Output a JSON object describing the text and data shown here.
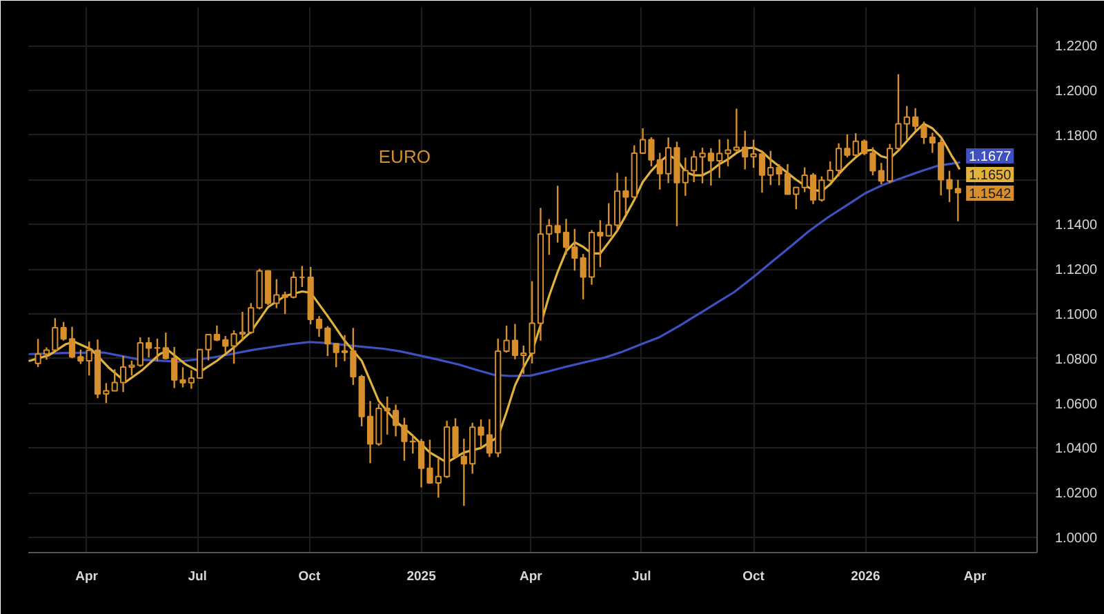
{
  "chart_data": {
    "type": "candlestick",
    "title": "EURO",
    "color": "#d68f2c",
    "xlim": [
      "2024-02-13",
      "2026-05-22"
    ],
    "xticks": [
      {
        "value": "2024-04-01",
        "label": "Apr"
      },
      {
        "value": "2024-07-01",
        "label": "Jul"
      },
      {
        "value": "2024-10-01",
        "label": "Oct"
      },
      {
        "value": "2025-01-01",
        "label": "2025"
      },
      {
        "value": "2025-04-01",
        "label": "Apr"
      },
      {
        "value": "2025-07-01",
        "label": "Jul"
      },
      {
        "value": "2025-10-01",
        "label": "Oct"
      },
      {
        "value": "2026-01-01",
        "label": "2026"
      },
      {
        "value": "2026-04-01",
        "label": "Apr"
      }
    ],
    "ylim": [
      0.9932,
      1.237
    ],
    "yticks": [
      {
        "value": 1.0,
        "label": "1.0000"
      },
      {
        "value": 1.02,
        "label": "1.0200"
      },
      {
        "value": 1.04,
        "label": "1.0400"
      },
      {
        "value": 1.06,
        "label": "1.0600"
      },
      {
        "value": 1.08,
        "label": "1.0800"
      },
      {
        "value": 1.1,
        "label": "1.1000"
      },
      {
        "value": 1.12,
        "label": "1.1200"
      },
      {
        "value": 1.14,
        "label": "1.1400"
      },
      {
        "value": 1.16,
        "label": null
      },
      {
        "value": 1.18,
        "label": "1.1800"
      },
      {
        "value": 1.2,
        "label": "1.2000"
      },
      {
        "value": 1.22,
        "label": "1.2200"
      }
    ],
    "grid": true,
    "x": [
      "2024-02-21",
      "2024-02-28",
      "2024-03-06",
      "2024-03-13",
      "2024-03-20",
      "2024-03-27",
      "2024-04-03",
      "2024-04-10",
      "2024-04-17",
      "2024-04-24",
      "2024-05-01",
      "2024-05-08",
      "2024-05-15",
      "2024-05-22",
      "2024-05-29",
      "2024-06-05",
      "2024-06-12",
      "2024-06-19",
      "2024-06-26",
      "2024-07-03",
      "2024-07-10",
      "2024-07-17",
      "2024-07-24",
      "2024-07-31",
      "2024-08-07",
      "2024-08-14",
      "2024-08-21",
      "2024-08-28",
      "2024-09-04",
      "2024-09-11",
      "2024-09-18",
      "2024-09-25",
      "2024-10-02",
      "2024-10-09",
      "2024-10-16",
      "2024-10-23",
      "2024-10-30",
      "2024-11-06",
      "2024-11-13",
      "2024-11-20",
      "2024-11-27",
      "2024-12-04",
      "2024-12-11",
      "2024-12-18",
      "2024-12-25",
      "2025-01-01",
      "2025-01-08",
      "2025-01-15",
      "2025-01-22",
      "2025-01-29",
      "2025-02-05",
      "2025-02-12",
      "2025-02-19",
      "2025-02-26",
      "2025-03-05",
      "2025-03-12",
      "2025-03-19",
      "2025-03-26",
      "2025-04-02",
      "2025-04-09",
      "2025-04-16",
      "2025-04-23",
      "2025-04-30",
      "2025-05-07",
      "2025-05-14",
      "2025-05-21",
      "2025-05-28",
      "2025-06-04",
      "2025-06-11",
      "2025-06-18",
      "2025-06-25",
      "2025-07-02",
      "2025-07-09",
      "2025-07-16",
      "2025-07-23",
      "2025-07-30",
      "2025-08-06",
      "2025-08-13",
      "2025-08-20",
      "2025-08-27",
      "2025-09-03",
      "2025-09-10",
      "2025-09-17",
      "2025-09-24",
      "2025-10-01",
      "2025-10-08",
      "2025-10-15",
      "2025-10-22",
      "2025-10-29",
      "2025-11-05",
      "2025-11-12",
      "2025-11-19",
      "2025-11-26",
      "2025-12-03",
      "2025-12-10",
      "2025-12-17",
      "2025-12-24",
      "2025-12-31",
      "2026-01-07",
      "2026-01-14",
      "2026-01-21",
      "2026-01-28",
      "2026-02-04",
      "2026-02-11",
      "2026-02-18",
      "2026-02-25",
      "2026-03-04",
      "2026-03-11",
      "2026-03-18"
    ],
    "ohlc": [
      [
        1.0778,
        1.0888,
        1.0762,
        1.082
      ],
      [
        1.082,
        1.085,
        1.0795,
        1.0838
      ],
      [
        1.0838,
        1.0981,
        1.0835,
        1.0938
      ],
      [
        1.0938,
        1.0964,
        1.088,
        1.0888
      ],
      [
        1.0888,
        1.0942,
        1.0802,
        1.0808
      ],
      [
        1.0808,
        1.084,
        1.0776,
        1.079
      ],
      [
        1.079,
        1.0876,
        1.0724,
        1.0837
      ],
      [
        1.0837,
        1.0885,
        1.0623,
        1.0642
      ],
      [
        1.0642,
        1.069,
        1.0601,
        1.0656
      ],
      [
        1.0656,
        1.0752,
        1.0655,
        1.0693
      ],
      [
        1.0693,
        1.0812,
        1.065,
        1.0762
      ],
      [
        1.0762,
        1.0791,
        1.0724,
        1.077
      ],
      [
        1.077,
        1.0895,
        1.0763,
        1.087
      ],
      [
        1.087,
        1.0895,
        1.0805,
        1.0847
      ],
      [
        1.0847,
        1.0889,
        1.0788,
        1.0848
      ],
      [
        1.0848,
        1.0916,
        1.0797,
        1.0801
      ],
      [
        1.0801,
        1.0852,
        1.0668,
        1.0704
      ],
      [
        1.0704,
        1.0761,
        1.0671,
        1.0692
      ],
      [
        1.0692,
        1.0748,
        1.0665,
        1.0713
      ],
      [
        1.0713,
        1.0843,
        1.071,
        1.084
      ],
      [
        1.084,
        1.091,
        1.0792,
        1.0907
      ],
      [
        1.0907,
        1.0948,
        1.0878,
        1.0883
      ],
      [
        1.0883,
        1.0901,
        1.0825,
        1.0856
      ],
      [
        1.0856,
        1.0926,
        1.0777,
        1.091
      ],
      [
        1.091,
        1.1009,
        1.088,
        1.0917
      ],
      [
        1.0917,
        1.1048,
        1.091,
        1.1027
      ],
      [
        1.1027,
        1.1202,
        1.102,
        1.1192
      ],
      [
        1.1192,
        1.1195,
        1.104,
        1.1048
      ],
      [
        1.1048,
        1.1155,
        1.1026,
        1.1085
      ],
      [
        1.1085,
        1.1099,
        1.0999,
        1.1075
      ],
      [
        1.1075,
        1.1189,
        1.1069,
        1.1163
      ],
      [
        1.1163,
        1.1214,
        1.112,
        1.1163
      ],
      [
        1.1163,
        1.121,
        1.0953,
        1.0975
      ],
      [
        1.0975,
        1.099,
        1.0897,
        1.0936
      ],
      [
        1.0936,
        1.0945,
        1.0811,
        1.0866
      ],
      [
        1.0866,
        1.087,
        1.0761,
        1.0828
      ],
      [
        1.0828,
        1.0905,
        1.0788,
        1.0834
      ],
      [
        1.0834,
        1.0937,
        1.0682,
        1.0719
      ],
      [
        1.0719,
        1.0727,
        1.0497,
        1.0541
      ],
      [
        1.0541,
        1.061,
        1.0332,
        1.0418
      ],
      [
        1.0418,
        1.0597,
        1.041,
        1.0577
      ],
      [
        1.0577,
        1.063,
        1.046,
        1.0567
      ],
      [
        1.0567,
        1.0594,
        1.0452,
        1.0501
      ],
      [
        1.0501,
        1.0535,
        1.0343,
        1.043
      ],
      [
        1.043,
        1.0456,
        1.0375,
        1.0428
      ],
      [
        1.0428,
        1.044,
        1.0224,
        1.0309
      ],
      [
        1.0309,
        1.0437,
        1.0242,
        1.0244
      ],
      [
        1.0244,
        1.0353,
        1.0178,
        1.0272
      ],
      [
        1.0272,
        1.0522,
        1.0266,
        1.0494
      ],
      [
        1.0494,
        1.0533,
        1.0355,
        1.0362
      ],
      [
        1.0362,
        1.0442,
        1.0141,
        1.0329
      ],
      [
        1.0329,
        1.0513,
        1.0285,
        1.0493
      ],
      [
        1.0493,
        1.0528,
        1.0401,
        1.0458
      ],
      [
        1.0458,
        1.0529,
        1.036,
        1.0378
      ],
      [
        1.0378,
        1.0889,
        1.0359,
        1.0833
      ],
      [
        1.0833,
        1.0947,
        1.0827,
        1.0881
      ],
      [
        1.0881,
        1.0955,
        1.0797,
        1.0815
      ],
      [
        1.0815,
        1.0858,
        1.0732,
        1.0824
      ],
      [
        1.0824,
        1.1146,
        1.0778,
        1.0958
      ],
      [
        1.0958,
        1.1474,
        1.088,
        1.1357
      ],
      [
        1.1357,
        1.1424,
        1.1264,
        1.1394
      ],
      [
        1.1394,
        1.1573,
        1.1319,
        1.1364
      ],
      [
        1.1364,
        1.1425,
        1.1265,
        1.1298
      ],
      [
        1.1298,
        1.138,
        1.1193,
        1.125
      ],
      [
        1.125,
        1.1268,
        1.1065,
        1.1165
      ],
      [
        1.1165,
        1.1375,
        1.113,
        1.1364
      ],
      [
        1.1364,
        1.1419,
        1.1209,
        1.1349
      ],
      [
        1.1349,
        1.1495,
        1.1345,
        1.1397
      ],
      [
        1.1397,
        1.1631,
        1.1373,
        1.1549
      ],
      [
        1.1549,
        1.1614,
        1.1446,
        1.1523
      ],
      [
        1.1523,
        1.1754,
        1.152,
        1.1719
      ],
      [
        1.1719,
        1.183,
        1.1715,
        1.1779
      ],
      [
        1.1779,
        1.179,
        1.166,
        1.1689
      ],
      [
        1.1689,
        1.172,
        1.1556,
        1.1627
      ],
      [
        1.1627,
        1.1789,
        1.1585,
        1.1743
      ],
      [
        1.1743,
        1.177,
        1.1392,
        1.1587
      ],
      [
        1.1587,
        1.1699,
        1.1528,
        1.1641
      ],
      [
        1.1641,
        1.173,
        1.1589,
        1.1702
      ],
      [
        1.1702,
        1.1743,
        1.1584,
        1.1718
      ],
      [
        1.1718,
        1.1741,
        1.1574,
        1.1685
      ],
      [
        1.1685,
        1.178,
        1.1608,
        1.1717
      ],
      [
        1.1717,
        1.1781,
        1.166,
        1.1733
      ],
      [
        1.1733,
        1.1918,
        1.1726,
        1.1745
      ],
      [
        1.1745,
        1.1819,
        1.1646,
        1.1703
      ],
      [
        1.1703,
        1.1779,
        1.1653,
        1.1715
      ],
      [
        1.1715,
        1.173,
        1.1542,
        1.1621
      ],
      [
        1.1621,
        1.1729,
        1.1576,
        1.1654
      ],
      [
        1.1654,
        1.1669,
        1.1575,
        1.1626
      ],
      [
        1.1626,
        1.167,
        1.1535,
        1.1535
      ],
      [
        1.1535,
        1.1568,
        1.1468,
        1.1565
      ],
      [
        1.1565,
        1.1655,
        1.1545,
        1.162
      ],
      [
        1.162,
        1.163,
        1.1491,
        1.151
      ],
      [
        1.151,
        1.1615,
        1.1502,
        1.1598
      ],
      [
        1.1598,
        1.1682,
        1.159,
        1.1642
      ],
      [
        1.1642,
        1.1763,
        1.1615,
        1.174
      ],
      [
        1.174,
        1.1803,
        1.17,
        1.171
      ],
      [
        1.171,
        1.1808,
        1.1705,
        1.1772
      ],
      [
        1.1772,
        1.178,
        1.171,
        1.1718
      ],
      [
        1.1718,
        1.1745,
        1.162,
        1.164
      ],
      [
        1.164,
        1.1675,
        1.158,
        1.1595
      ],
      [
        1.1595,
        1.176,
        1.1585,
        1.174
      ],
      [
        1.174,
        1.2072,
        1.173,
        1.185
      ],
      [
        1.185,
        1.193,
        1.178,
        1.188
      ],
      [
        1.188,
        1.192,
        1.182,
        1.184
      ],
      [
        1.184,
        1.186,
        1.176,
        1.179
      ],
      [
        1.179,
        1.181,
        1.172,
        1.1765
      ],
      [
        1.1765,
        1.178,
        1.153,
        1.16
      ],
      [
        1.16,
        1.164,
        1.15,
        1.156
      ],
      [
        1.156,
        1.16,
        1.1414,
        1.1542
      ]
    ],
    "series": [
      {
        "type": "line",
        "color": "#3f50c0",
        "x": [
          "2024-02-14",
          "2024-03-15",
          "2024-04-15",
          "2024-05-15",
          "2024-06-15",
          "2024-07-15",
          "2024-08-15",
          "2024-09-15",
          "2024-10-01",
          "2024-10-15",
          "2024-11-01",
          "2024-11-15",
          "2024-12-01",
          "2024-12-15",
          "2025-01-01",
          "2025-01-15",
          "2025-02-01",
          "2025-02-15",
          "2025-03-01",
          "2025-03-15",
          "2025-04-01",
          "2025-04-15",
          "2025-05-01",
          "2025-05-15",
          "2025-06-01",
          "2025-06-15",
          "2025-07-01",
          "2025-07-15",
          "2025-08-01",
          "2025-08-15",
          "2025-09-01",
          "2025-09-15",
          "2025-10-01",
          "2025-10-15",
          "2025-11-01",
          "2025-11-15",
          "2025-12-01",
          "2025-12-15",
          "2026-01-01",
          "2026-01-15",
          "2026-02-01",
          "2026-02-15",
          "2026-03-01",
          "2026-03-19"
        ],
        "values": [
          1.082,
          1.0825,
          1.0827,
          1.0795,
          1.0786,
          1.0806,
          1.0838,
          1.0864,
          1.0874,
          1.087,
          1.086,
          1.0852,
          1.0844,
          1.0832,
          1.0812,
          1.0795,
          1.0773,
          1.075,
          1.0728,
          1.0722,
          1.0724,
          1.0742,
          1.0765,
          1.0783,
          1.0805,
          1.083,
          1.0865,
          1.0894,
          1.0946,
          1.0993,
          1.105,
          1.1097,
          1.1165,
          1.1228,
          1.1304,
          1.1368,
          1.1431,
          1.148,
          1.154,
          1.1576,
          1.161,
          1.1637,
          1.1662,
          1.1677
        ],
        "value_labels": [
          null,
          null,
          null,
          null,
          null,
          null,
          null,
          null,
          null,
          null,
          null,
          null,
          null,
          null,
          null,
          null,
          null,
          null,
          null,
          null,
          null,
          null,
          null,
          null,
          null,
          null,
          null,
          null,
          null,
          null,
          null,
          null,
          null,
          null,
          null,
          null,
          null,
          null,
          null,
          null,
          null,
          null,
          null,
          "1.1677"
        ]
      },
      {
        "type": "line",
        "color": "#e2b33c",
        "x": [
          "2024-02-14",
          "2024-03-01",
          "2024-03-15",
          "2024-03-22",
          "2024-04-05",
          "2024-04-19",
          "2024-05-03",
          "2024-05-17",
          "2024-05-31",
          "2024-06-07",
          "2024-06-21",
          "2024-07-03",
          "2024-07-17",
          "2024-07-31",
          "2024-08-14",
          "2024-08-28",
          "2024-09-11",
          "2024-09-25",
          "2024-10-02",
          "2024-10-16",
          "2024-10-30",
          "2024-11-13",
          "2024-11-27",
          "2024-12-11",
          "2024-12-25",
          "2025-01-08",
          "2025-01-22",
          "2025-02-05",
          "2025-02-19",
          "2025-03-05",
          "2025-03-12",
          "2025-03-19",
          "2025-03-26",
          "2025-04-02",
          "2025-04-09",
          "2025-04-16",
          "2025-04-23",
          "2025-04-30",
          "2025-05-07",
          "2025-05-14",
          "2025-05-21",
          "2025-05-28",
          "2025-06-04",
          "2025-06-11",
          "2025-06-18",
          "2025-06-25",
          "2025-07-02",
          "2025-07-09",
          "2025-07-16",
          "2025-07-23",
          "2025-07-30",
          "2025-08-06",
          "2025-08-13",
          "2025-08-20",
          "2025-08-27",
          "2025-09-03",
          "2025-09-10",
          "2025-09-17",
          "2025-09-24",
          "2025-10-01",
          "2025-10-08",
          "2025-10-15",
          "2025-10-22",
          "2025-10-29",
          "2025-11-05",
          "2025-11-12",
          "2025-11-19",
          "2025-11-26",
          "2025-12-03",
          "2025-12-10",
          "2025-12-17",
          "2025-12-24",
          "2025-12-31",
          "2026-01-07",
          "2026-01-14",
          "2026-01-21",
          "2026-01-28",
          "2026-02-04",
          "2026-02-11",
          "2026-02-18",
          "2026-02-25",
          "2026-03-04",
          "2026-03-09",
          "2026-03-13",
          "2026-03-16",
          "2026-03-19"
        ],
        "values": [
          1.079,
          1.0815,
          1.0865,
          1.0875,
          1.084,
          1.076,
          1.0695,
          1.075,
          1.082,
          1.0837,
          1.0775,
          1.074,
          1.079,
          1.085,
          1.092,
          1.103,
          1.108,
          1.11,
          1.1095,
          1.099,
          1.088,
          1.079,
          1.061,
          1.052,
          1.0455,
          1.038,
          1.0335,
          1.038,
          1.04,
          1.045,
          1.056,
          1.068,
          1.076,
          1.083,
          1.095,
          1.108,
          1.1187,
          1.128,
          1.132,
          1.13,
          1.127,
          1.127,
          1.132,
          1.1372,
          1.144,
          1.151,
          1.159,
          1.164,
          1.168,
          1.171,
          1.169,
          1.1635,
          1.162,
          1.162,
          1.164,
          1.167,
          1.1691,
          1.172,
          1.174,
          1.1743,
          1.1725,
          1.169,
          1.166,
          1.163,
          1.16,
          1.1575,
          1.1555,
          1.1548,
          1.158,
          1.1625,
          1.1665,
          1.17,
          1.173,
          1.1733,
          1.1705,
          1.1695,
          1.173,
          1.1773,
          1.1815,
          1.185,
          1.183,
          1.179,
          1.1745,
          1.1705,
          1.168,
          1.165
        ],
        "value_labels": [
          null,
          null,
          null,
          null,
          null,
          null,
          null,
          null,
          null,
          null,
          null,
          null,
          null,
          null,
          null,
          null,
          null,
          null,
          null,
          null,
          null,
          null,
          null,
          null,
          null,
          null,
          null,
          null,
          null,
          null,
          null,
          null,
          null,
          null,
          null,
          null,
          null,
          null,
          null,
          null,
          null,
          null,
          null,
          null,
          null,
          null,
          null,
          null,
          null,
          null,
          null,
          null,
          null,
          null,
          null,
          null,
          null,
          null,
          null,
          null,
          null,
          null,
          null,
          null,
          null,
          null,
          null,
          null,
          null,
          null,
          null,
          null,
          null,
          null,
          null,
          null,
          null,
          null,
          null,
          null,
          null,
          null,
          null,
          null,
          null,
          "1.1650"
        ]
      }
    ],
    "annotations": [
      {
        "text": "1.1542",
        "x": "2026-03-18",
        "y": 1.1542
      }
    ]
  }
}
